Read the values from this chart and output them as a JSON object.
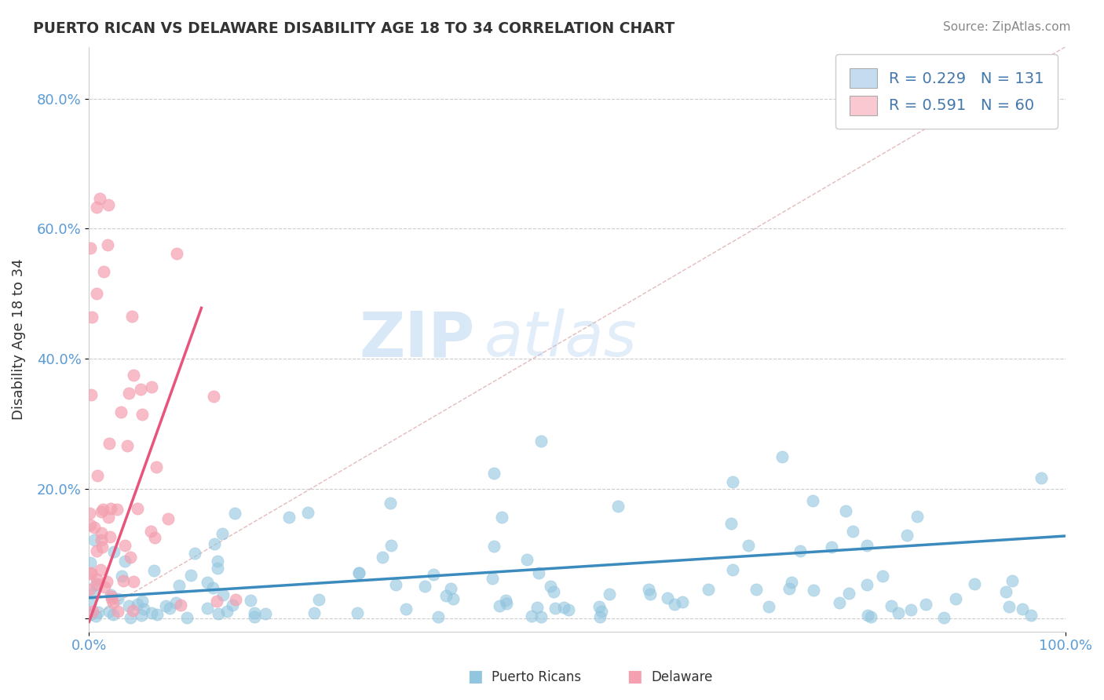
{
  "title": "PUERTO RICAN VS DELAWARE DISABILITY AGE 18 TO 34 CORRELATION CHART",
  "source": "Source: ZipAtlas.com",
  "ylabel": "Disability Age 18 to 34",
  "blue_R": 0.229,
  "blue_N": 131,
  "pink_R": 0.591,
  "pink_N": 60,
  "blue_color": "#92C5DE",
  "pink_color": "#F4A0B0",
  "blue_line_color": "#3B8BBE",
  "pink_line_color": "#E8547A",
  "watermark_zip": "ZIP",
  "watermark_atlas": "atlas",
  "background_color": "#FFFFFF",
  "legend_box_blue": "#C5DCF0",
  "legend_box_pink": "#F9C8D0",
  "legend_text_color": "#4477AA",
  "diag_color": "#F0AAAA",
  "grid_color": "#CCCCCC",
  "axis_color": "#CCCCCC",
  "tick_color": "#5B9BD5",
  "title_color": "#333333",
  "source_color": "#888888",
  "ylabel_color": "#333333"
}
